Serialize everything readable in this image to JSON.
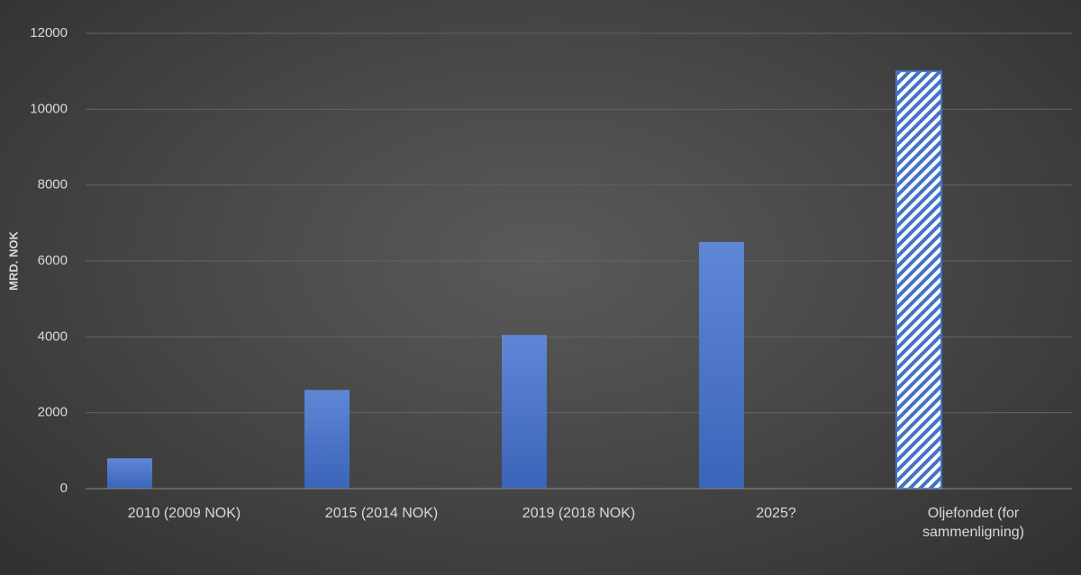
{
  "chart_data": {
    "type": "bar",
    "y_label": "MRD. NOK",
    "categories": [
      "2010 (2009 NOK)",
      "2015 (2014 NOK)",
      "2019 (2018 NOK)",
      "2025?",
      "Oljefondet (for sammenligning)"
    ],
    "values": [
      800,
      2600,
      4050,
      6500,
      11000
    ],
    "hatched": [
      false,
      false,
      false,
      false,
      true
    ],
    "color": "#4472c4",
    "ylim": [
      0,
      12000
    ],
    "yticks": [
      0,
      2000,
      4000,
      6000,
      8000,
      10000,
      12000
    ],
    "grid": true
  }
}
